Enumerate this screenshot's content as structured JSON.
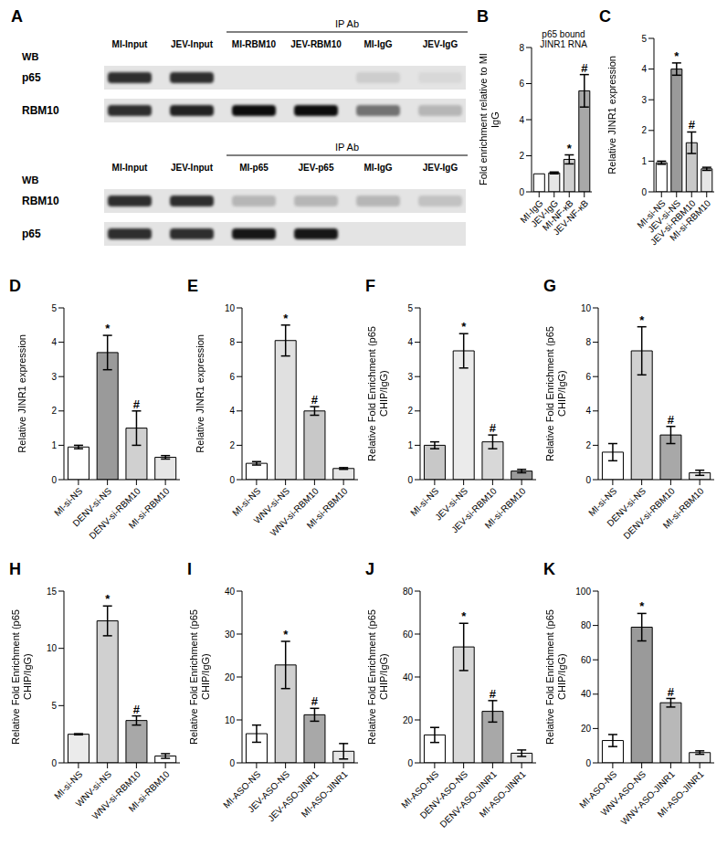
{
  "blot_panel": {
    "panel": "A",
    "blots": [
      {
        "ip_label": "IP Ab",
        "row_header": "WB",
        "input_lanes": [
          "MI-Input",
          "JEV-Input"
        ],
        "ip_lanes": [
          "MI-RBM10",
          "JEV-RBM10",
          "MI-IgG",
          "JEV-IgG"
        ],
        "rows": [
          {
            "name": "p65",
            "intensity": [
              0.8,
              0.8,
              0.0,
              0.0,
              0.1,
              0.05
            ]
          },
          {
            "name": "RBM10",
            "intensity": [
              0.8,
              0.85,
              0.95,
              0.95,
              0.5,
              0.2
            ]
          }
        ]
      },
      {
        "ip_label": "IP Ab",
        "row_header": "WB",
        "input_lanes": [
          "MI-Input",
          "JEV-Input"
        ],
        "ip_lanes": [
          "MI-p65",
          "JEV-p65",
          "MI-IgG",
          "JEV-IgG"
        ],
        "rows": [
          {
            "name": "RBM10",
            "intensity": [
              0.8,
              0.8,
              0.2,
              0.2,
              0.2,
              0.15
            ]
          },
          {
            "name": "p65",
            "intensity": [
              0.8,
              0.8,
              0.9,
              0.9,
              0.0,
              0.0
            ]
          }
        ]
      }
    ]
  },
  "chart_data": [
    {
      "panel": "B",
      "type": "bar",
      "title": "p65 bound JINR1 RNA",
      "ylabel": "Fold enrichment relative to MI IgG",
      "categories": [
        "MI-IgG",
        "JEV-IgG",
        "MI-NF-κB",
        "JEV-NF-κB"
      ],
      "values": [
        1.0,
        1.05,
        1.8,
        5.6
      ],
      "errors": [
        0.0,
        0.05,
        0.25,
        0.9
      ],
      "annotations": [
        null,
        null,
        "*",
        "#"
      ],
      "colors": [
        "#ffffff",
        "#e6e6e6",
        "#d0d0d0",
        "#a8a8a8"
      ],
      "ylim": [
        0,
        8
      ],
      "yticks": [
        0,
        2,
        4,
        6,
        8
      ]
    },
    {
      "panel": "C",
      "type": "bar",
      "ylabel": "Relative JINR1 expression",
      "categories": [
        "MI-si-NS",
        "JEV-si-NS",
        "JEV-si-RBM10",
        "MI-si-RBM10"
      ],
      "values": [
        0.95,
        4.0,
        1.6,
        0.75
      ],
      "errors": [
        0.05,
        0.2,
        0.35,
        0.05
      ],
      "annotations": [
        null,
        "*",
        "#",
        null
      ],
      "colors": [
        "#ffffff",
        "#9a9a9a",
        "#c8c8c8",
        "#e6e6e6"
      ],
      "ylim": [
        0,
        5
      ],
      "yticks": [
        0,
        1,
        2,
        3,
        4,
        5
      ]
    },
    {
      "panel": "D",
      "type": "bar",
      "ylabel": "Relative JINR1 expression",
      "categories": [
        "MI-si-NS",
        "DENV-si-NS",
        "DENV-si-RBM10",
        "MI-si-RBM10"
      ],
      "values": [
        0.95,
        3.7,
        1.5,
        0.65
      ],
      "errors": [
        0.05,
        0.5,
        0.5,
        0.05
      ],
      "annotations": [
        null,
        "*",
        "#",
        null
      ],
      "colors": [
        "#ffffff",
        "#9a9a9a",
        "#d0d0d0",
        "#e6e6e6"
      ],
      "ylim": [
        0,
        5
      ],
      "yticks": [
        0,
        1,
        2,
        3,
        4,
        5
      ]
    },
    {
      "panel": "E",
      "type": "bar",
      "ylabel": "Relative JINR1 expression",
      "categories": [
        "MI-si-NS",
        "WNV-si-NS",
        "WNV-si-RBM10",
        "MI-si-RBM10"
      ],
      "values": [
        0.95,
        8.1,
        4.0,
        0.65
      ],
      "errors": [
        0.1,
        0.9,
        0.25,
        0.05
      ],
      "annotations": [
        null,
        "*",
        "#",
        null
      ],
      "colors": [
        "#ffffff",
        "#e0e0e0",
        "#c8c8c8",
        "#e6e6e6"
      ],
      "ylim": [
        0,
        10
      ],
      "yticks": [
        0,
        2,
        4,
        6,
        8,
        10
      ]
    },
    {
      "panel": "F",
      "type": "bar",
      "ylabel": "Relative Fold Enrichment (p65 CHIP/IgG)",
      "categories": [
        "MI-si-NS",
        "JEV-si-NS",
        "JEV-si-RBM10",
        "MI-si-RBM10"
      ],
      "values": [
        1.0,
        3.75,
        1.1,
        0.25
      ],
      "errors": [
        0.1,
        0.5,
        0.2,
        0.05
      ],
      "annotations": [
        null,
        "*",
        "#",
        null
      ],
      "colors": [
        "#c8c8c8",
        "#ebebeb",
        "#d8d8d8",
        "#9a9a9a"
      ],
      "ylim": [
        0,
        5
      ],
      "yticks": [
        0,
        1,
        2,
        3,
        4,
        5
      ]
    },
    {
      "panel": "G",
      "type": "bar",
      "ylabel": "Relative Fold Enrichment (p65 CHIP/IgG)",
      "categories": [
        "MI-si-NS",
        "DENV-si-NS",
        "DENV-si-RBM10",
        "MI-si-RBM10"
      ],
      "values": [
        1.6,
        7.5,
        2.6,
        0.4
      ],
      "errors": [
        0.5,
        1.4,
        0.5,
        0.15
      ],
      "annotations": [
        null,
        "*",
        "#",
        null
      ],
      "colors": [
        "#ffffff",
        "#d0d0d0",
        "#a8a8a8",
        "#e6e6e6"
      ],
      "ylim": [
        0,
        10
      ],
      "yticks": [
        0,
        2,
        4,
        6,
        8,
        10
      ]
    },
    {
      "panel": "H",
      "type": "bar",
      "ylabel": "Relative Fold Enrichment (p65 CHIP/IgG)",
      "categories": [
        "MI-si-NS",
        "WNV-si-NS",
        "WNV-si-RBM10",
        "MI-si-RBM10"
      ],
      "values": [
        2.5,
        12.4,
        3.7,
        0.6
      ],
      "errors": [
        0.05,
        1.3,
        0.4,
        0.2
      ],
      "annotations": [
        null,
        "*",
        "#",
        null
      ],
      "colors": [
        "#ebebeb",
        "#d0d0d0",
        "#a8a8a8",
        "#ffffff"
      ],
      "ylim": [
        0,
        15
      ],
      "yticks": [
        0,
        5,
        10,
        15
      ]
    },
    {
      "panel": "I",
      "type": "bar",
      "ylabel": "Relative Fold Enrichment (p65 CHIP/IgG)",
      "categories": [
        "MI-ASO-NS",
        "JEV-ASO-NS",
        "JEV-ASO-JINR1",
        "MI-ASO-JINR1"
      ],
      "values": [
        6.8,
        22.8,
        11.2,
        2.7
      ],
      "errors": [
        2.0,
        5.5,
        1.5,
        1.8
      ],
      "annotations": [
        null,
        "*",
        "#",
        null
      ],
      "colors": [
        "#ffffff",
        "#d0d0d0",
        "#a8a8a8",
        "#e6e6e6"
      ],
      "ylim": [
        0,
        40
      ],
      "yticks": [
        0,
        10,
        20,
        30,
        40
      ]
    },
    {
      "panel": "J",
      "type": "bar",
      "ylabel": "Relative Fold Enrichment (p65 CHIP/IgG)",
      "categories": [
        "MI-ASO-NS",
        "DENV-ASO-NS",
        "DENV-ASO-JINR1",
        "MI-ASO-JINR1"
      ],
      "values": [
        13.0,
        54.0,
        24.0,
        4.5
      ],
      "errors": [
        3.5,
        11.0,
        5.0,
        1.5
      ],
      "annotations": [
        null,
        "*",
        "#",
        null
      ],
      "colors": [
        "#ffffff",
        "#d8d8d8",
        "#a8a8a8",
        "#e6e6e6"
      ],
      "ylim": [
        0,
        80
      ],
      "yticks": [
        0,
        20,
        40,
        60,
        80
      ]
    },
    {
      "panel": "K",
      "type": "bar",
      "ylabel": "Relative Fold Enrichment (p65 CHIP/IgG)",
      "categories": [
        "MI-ASO-NS",
        "WNV-ASO-NS",
        "WNV-ASO-JINR1",
        "MI-ASO-JINR1"
      ],
      "values": [
        13.0,
        79.0,
        35.0,
        6.0
      ],
      "errors": [
        3.5,
        8.0,
        2.5,
        1.0
      ],
      "annotations": [
        null,
        "*",
        "#",
        null
      ],
      "colors": [
        "#ffffff",
        "#9a9a9a",
        "#b8b8b8",
        "#e6e6e6"
      ],
      "ylim": [
        0,
        100
      ],
      "yticks": [
        0,
        20,
        40,
        60,
        80,
        100
      ]
    }
  ]
}
